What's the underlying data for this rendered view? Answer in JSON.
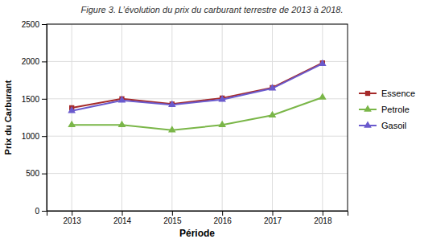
{
  "chart_data": {
    "type": "line",
    "title": "Figure 3. L’évolution du prix du carburant terrestre de 2013 à 2018.",
    "xlabel": "Période",
    "ylabel": "Prix du Carburant",
    "x": [
      2013,
      2014,
      2015,
      2016,
      2017,
      2018
    ],
    "xlim": [
      2012.5,
      2018.5
    ],
    "xticks": [
      2013,
      2014,
      2015,
      2016,
      2017,
      2018
    ],
    "ylim": [
      0,
      2500
    ],
    "yticks": [
      0,
      500,
      1000,
      1500,
      2000,
      2500
    ],
    "grid": true,
    "legend": "right",
    "series": [
      {
        "name": "Essence",
        "color": "#a52a2a",
        "marker": "square",
        "values": [
          1380,
          1500,
          1430,
          1510,
          1650,
          1980
        ]
      },
      {
        "name": "Petrole",
        "color": "#7ab648",
        "marker": "triangle",
        "values": [
          1150,
          1150,
          1080,
          1150,
          1280,
          1520
        ]
      },
      {
        "name": "Gasoil",
        "color": "#6a5acd",
        "marker": "triangle",
        "values": [
          1340,
          1480,
          1420,
          1490,
          1640,
          1970
        ]
      }
    ]
  }
}
